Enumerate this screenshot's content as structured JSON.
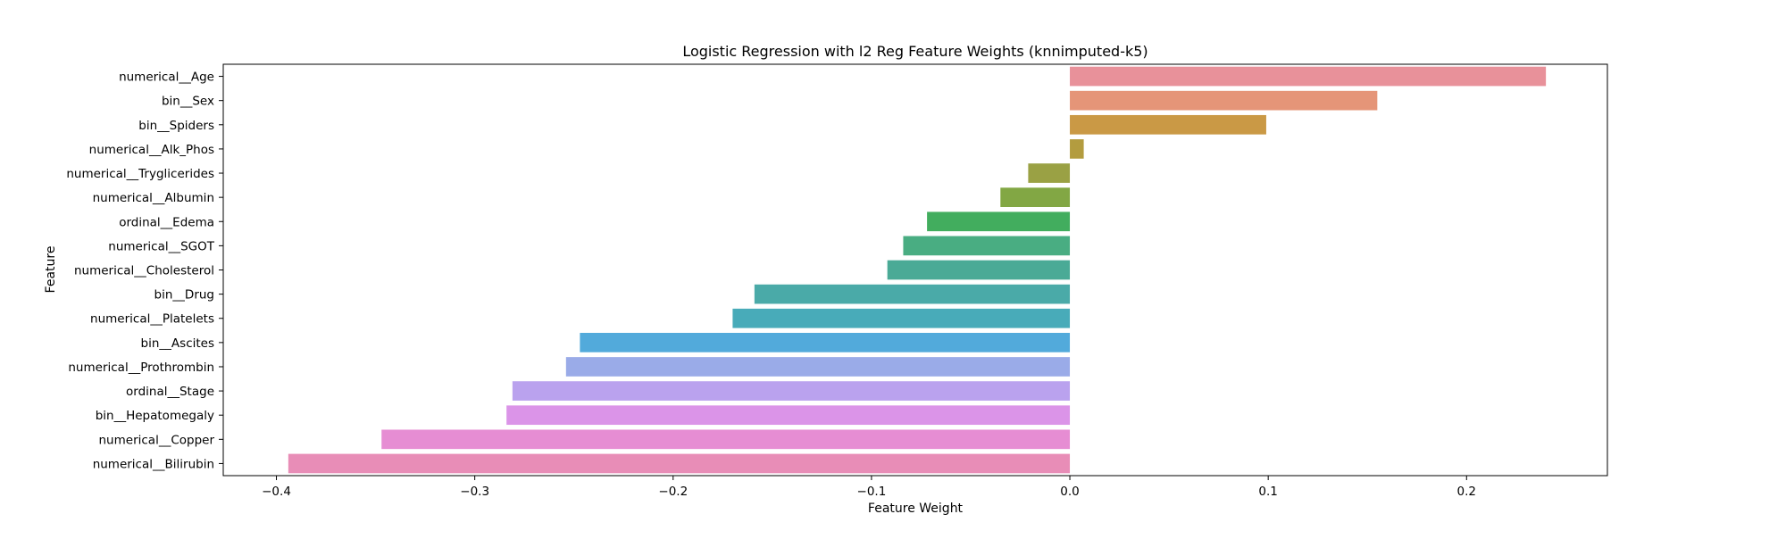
{
  "chart_data": {
    "type": "bar",
    "orientation": "horizontal",
    "title": "Logistic Regression with l2 Reg Feature Weights (knnimputed-k5)",
    "xlabel": "Feature Weight",
    "ylabel": "Feature",
    "xlim": [
      -0.4268,
      0.271
    ],
    "xticks": [
      -0.4,
      -0.3,
      -0.2,
      -0.1,
      0.0,
      0.1,
      0.2
    ],
    "xtick_labels": [
      "−0.4",
      "−0.3",
      "−0.2",
      "−0.1",
      "0.0",
      "0.1",
      "0.2"
    ],
    "grid": false,
    "legend": "none",
    "categories": [
      "numerical__Age",
      "bin__Sex",
      "bin__Spiders",
      "numerical__Alk_Phos",
      "numerical__Tryglicerides",
      "numerical__Albumin",
      "ordinal__Edema",
      "numerical__SGOT",
      "numerical__Cholesterol",
      "bin__Drug",
      "numerical__Platelets",
      "bin__Ascites",
      "numerical__Prothrombin",
      "ordinal__Stage",
      "bin__Hepatomegaly",
      "numerical__Copper",
      "numerical__Bilirubin"
    ],
    "values": [
      0.24,
      0.155,
      0.099,
      0.007,
      -0.021,
      -0.035,
      -0.072,
      -0.084,
      -0.092,
      -0.159,
      -0.17,
      -0.247,
      -0.254,
      -0.281,
      -0.284,
      -0.347,
      -0.394
    ],
    "colors": [
      "#e8919a",
      "#e59578",
      "#ca9945",
      "#b39c3f",
      "#9aa144",
      "#82a744",
      "#42ad5e",
      "#49ad82",
      "#4aaa96",
      "#4aaaa8",
      "#48abb9",
      "#52aadb",
      "#9aabe8",
      "#baa2ee",
      "#db94e8",
      "#e68dd3",
      "#e88db7"
    ]
  }
}
